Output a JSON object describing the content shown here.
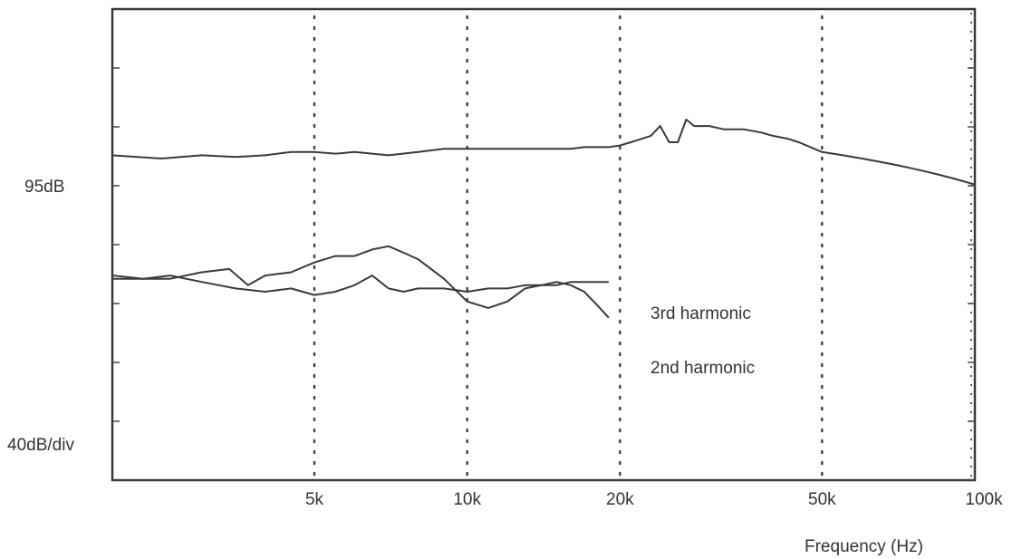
{
  "chart_data": {
    "type": "line",
    "xlabel": "Frequency (Hz)",
    "x_scale": "log",
    "xlim": [
      2000,
      100000
    ],
    "x_ticks": [
      {
        "value": 5000,
        "label": "5k"
      },
      {
        "value": 10000,
        "label": "10k"
      },
      {
        "value": 20000,
        "label": "20k"
      },
      {
        "value": 50000,
        "label": "50k"
      },
      {
        "value": 100000,
        "label": "100k"
      }
    ],
    "y_reference": {
      "value": 95,
      "label": "95dB"
    },
    "y_scale_label": "40dB/div",
    "ylim": [
      -5,
      140
    ],
    "grid": "vertical dotted lines at labelled frequencies",
    "series": [
      {
        "name": "",
        "x": [
          2000,
          2500,
          3000,
          3500,
          4000,
          4500,
          5000,
          5500,
          6000,
          7000,
          8000,
          9000,
          10000,
          11000,
          12000,
          13000,
          14000,
          15000,
          16000,
          17000,
          18000,
          19000,
          20000,
          21000,
          22000,
          23000,
          24000,
          25000,
          26000,
          27000,
          28000,
          30000,
          32000,
          35000,
          38000,
          40000,
          43000,
          45000,
          50000,
          55000,
          60000,
          65000,
          70000,
          75000,
          80000,
          85000,
          90000,
          95000,
          100000
        ],
        "y": [
          95,
          94,
          95,
          94.5,
          95,
          96,
          96,
          95.5,
          96,
          95,
          96,
          97,
          97,
          97,
          97,
          97,
          97,
          97,
          97,
          97.5,
          97.5,
          97.5,
          98,
          99,
          100,
          101,
          104,
          99,
          99,
          106,
          104,
          104,
          103,
          103,
          102,
          101,
          100,
          99,
          96,
          95,
          94,
          93,
          92,
          91,
          90,
          89,
          88,
          87,
          86
        ]
      },
      {
        "name": "3rd harmonic",
        "x": [
          2000,
          2300,
          2600,
          3000,
          3400,
          3700,
          4000,
          4500,
          5000,
          5500,
          6000,
          6500,
          7000,
          7500,
          8000,
          9000,
          10000,
          11000,
          12000,
          13000,
          14000,
          15000,
          16000,
          17000,
          18000,
          19000
        ],
        "y": [
          58,
          57,
          57,
          59,
          60,
          55,
          58,
          59,
          62,
          64,
          64,
          66,
          67,
          65,
          63,
          57,
          50,
          48,
          50,
          54,
          55,
          56,
          55,
          53,
          49,
          45
        ]
      },
      {
        "name": "2nd harmonic",
        "x": [
          2000,
          2300,
          2600,
          3000,
          3500,
          4000,
          4500,
          5000,
          5500,
          6000,
          6500,
          7000,
          7500,
          8000,
          9000,
          10000,
          11000,
          12000,
          13000,
          14000,
          15000,
          16000,
          17000,
          18000,
          19000
        ],
        "y": [
          57,
          57,
          58,
          56,
          54,
          53,
          54,
          52,
          53,
          55,
          58,
          54,
          53,
          54,
          54,
          53,
          54,
          54,
          55,
          55,
          55,
          56,
          56,
          56,
          56
        ]
      }
    ]
  }
}
